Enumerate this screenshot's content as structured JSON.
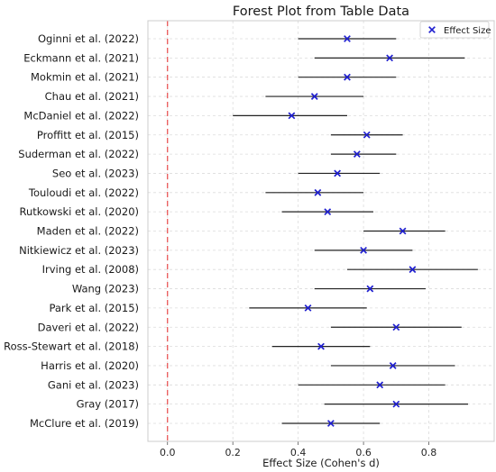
{
  "chart_data": {
    "type": "forest",
    "title": "Forest Plot from Table Data",
    "xlabel": "Effect Size (Cohen's d)",
    "xlim": [
      -0.06,
      1.0
    ],
    "xticks": [
      0.0,
      0.2,
      0.4,
      0.6,
      0.8
    ],
    "xtick_labels": [
      "0.0",
      "0.2",
      "0.4",
      "0.6",
      "0.8"
    ],
    "reference_line": {
      "x": 0.0,
      "style": "dashed",
      "color": "#e8494a"
    },
    "legend": {
      "label": "Effect Size",
      "position": "top-right"
    },
    "grid": true,
    "marker_color": "#1f1fcf",
    "ci_color": "#222222",
    "studies": [
      {
        "name": "Oginni et al. (2022)",
        "effect": 0.55,
        "ci_low": 0.4,
        "ci_high": 0.7
      },
      {
        "name": "Eckmann et al. (2021)",
        "effect": 0.68,
        "ci_low": 0.45,
        "ci_high": 0.91
      },
      {
        "name": "Mokmin et al. (2021)",
        "effect": 0.55,
        "ci_low": 0.4,
        "ci_high": 0.7
      },
      {
        "name": "Chau et al. (2021)",
        "effect": 0.45,
        "ci_low": 0.3,
        "ci_high": 0.6
      },
      {
        "name": "McDaniel et al. (2022)",
        "effect": 0.38,
        "ci_low": 0.2,
        "ci_high": 0.55
      },
      {
        "name": "Proffitt et al. (2015)",
        "effect": 0.61,
        "ci_low": 0.5,
        "ci_high": 0.72
      },
      {
        "name": "Suderman et al. (2022)",
        "effect": 0.58,
        "ci_low": 0.5,
        "ci_high": 0.7
      },
      {
        "name": "Seo et al. (2023)",
        "effect": 0.52,
        "ci_low": 0.4,
        "ci_high": 0.65
      },
      {
        "name": "Touloudi et al. (2022)",
        "effect": 0.46,
        "ci_low": 0.3,
        "ci_high": 0.6
      },
      {
        "name": "Rutkowski et al. (2020)",
        "effect": 0.49,
        "ci_low": 0.35,
        "ci_high": 0.63
      },
      {
        "name": "Maden et al. (2022)",
        "effect": 0.72,
        "ci_low": 0.6,
        "ci_high": 0.85
      },
      {
        "name": "Nitkiewicz et al. (2023)",
        "effect": 0.6,
        "ci_low": 0.45,
        "ci_high": 0.75
      },
      {
        "name": "Irving et al. (2008)",
        "effect": 0.75,
        "ci_low": 0.55,
        "ci_high": 0.95
      },
      {
        "name": "Wang (2023)",
        "effect": 0.62,
        "ci_low": 0.45,
        "ci_high": 0.79
      },
      {
        "name": "Park et al. (2015)",
        "effect": 0.43,
        "ci_low": 0.25,
        "ci_high": 0.61
      },
      {
        "name": "Daveri et al. (2022)",
        "effect": 0.7,
        "ci_low": 0.5,
        "ci_high": 0.9
      },
      {
        "name": "Ross-Stewart et al. (2018)",
        "effect": 0.47,
        "ci_low": 0.32,
        "ci_high": 0.62
      },
      {
        "name": "Harris et al. (2020)",
        "effect": 0.69,
        "ci_low": 0.5,
        "ci_high": 0.88
      },
      {
        "name": "Gani et al. (2023)",
        "effect": 0.65,
        "ci_low": 0.4,
        "ci_high": 0.85
      },
      {
        "name": "Gray (2017)",
        "effect": 0.7,
        "ci_low": 0.48,
        "ci_high": 0.92
      },
      {
        "name": "McClure et al. (2019)",
        "effect": 0.5,
        "ci_low": 0.35,
        "ci_high": 0.65
      }
    ]
  }
}
